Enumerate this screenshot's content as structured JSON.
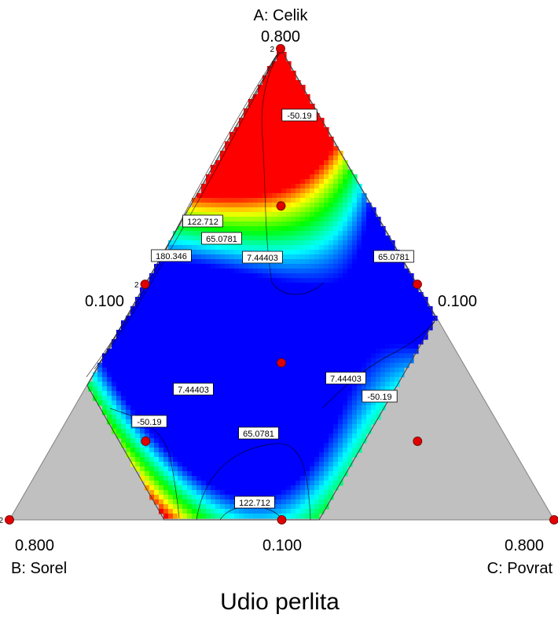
{
  "chart_data": {
    "type": "heatmap",
    "subtype": "ternary mixture contour plot",
    "title": "Udio perlita",
    "vertices": {
      "a": {
        "name": "A: Celik",
        "max_label": "0.800",
        "min_label": "0.100"
      },
      "b": {
        "name": "B: Sorel",
        "max_label": "0.800",
        "min_label": "0.100"
      },
      "c": {
        "name": "C: Povrat",
        "max_label": "0.800",
        "min_label": "0.100"
      }
    },
    "colormap": [
      "#0000ff",
      "#00ffff",
      "#00ff00",
      "#ffff00",
      "#ff0000"
    ],
    "color_range": [
      -50.19,
      122.712
    ],
    "outside_region_color": "#c0c0c0",
    "contour_labels": [
      "180.346",
      "122.712",
      "65.0781",
      "7.44403",
      "-50.19",
      "65.0781",
      "7.44403",
      "7.44403",
      "-50.19",
      "-50.19",
      "65.0781",
      "122.712"
    ],
    "design_points": [
      {
        "A": 0.8,
        "B": 0.1,
        "C": 0.1,
        "replicates": 2
      },
      {
        "A": 0.45,
        "B": 0.1,
        "C": 0.45
      },
      {
        "A": 0.1,
        "B": 0.1,
        "C": 0.8
      },
      {
        "A": 0.1,
        "B": 0.45,
        "C": 0.45
      },
      {
        "A": 0.1,
        "B": 0.8,
        "C": 0.1,
        "replicates": 2
      },
      {
        "A": 0.45,
        "B": 0.45,
        "C": 0.1,
        "replicates": 2
      },
      {
        "A": 0.567,
        "B": 0.217,
        "C": 0.217
      },
      {
        "A": 0.217,
        "B": 0.567,
        "C": 0.217
      },
      {
        "A": 0.217,
        "B": 0.217,
        "C": 0.567
      },
      {
        "A": 0.333,
        "B": 0.333,
        "C": 0.333
      }
    ],
    "replicate_label": "2"
  }
}
